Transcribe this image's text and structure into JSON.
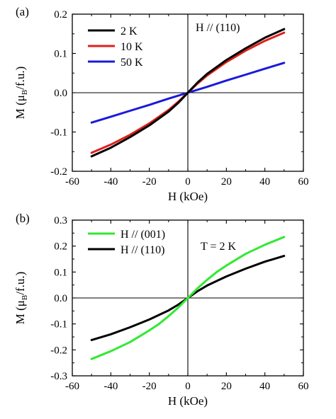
{
  "chart_data": [
    {
      "type": "line",
      "panel_label": "(a)",
      "annotation": "H // (110)",
      "xlabel": "H (kOe)",
      "ylabel": "M (μ<sub>B</sub>/f.u.)",
      "ylabel_parts": {
        "main": "M (μ",
        "sub": "B",
        "tail": "/f.u.)"
      },
      "xlim": [
        -60,
        60
      ],
      "ylim": [
        -0.2,
        0.2
      ],
      "xticks": [
        -60,
        -40,
        -20,
        0,
        20,
        40,
        60
      ],
      "yticks": [
        -0.2,
        -0.1,
        0.0,
        0.1,
        0.2
      ],
      "xtick_labels": [
        "-60",
        "-40",
        "-20",
        "0",
        "20",
        "40",
        "60"
      ],
      "ytick_labels": [
        "-0.2",
        "-0.1",
        "0.0",
        "0.1",
        "0.2"
      ],
      "legend_position": "top-left",
      "grid": false,
      "series": [
        {
          "name": "2 K",
          "color": "#000000",
          "x": [
            -50,
            -40,
            -30,
            -20,
            -10,
            -5,
            0,
            5,
            10,
            20,
            30,
            40,
            50
          ],
          "y": [
            -0.162,
            -0.14,
            -0.113,
            -0.083,
            -0.048,
            -0.026,
            0.0,
            0.026,
            0.048,
            0.083,
            0.113,
            0.14,
            0.162
          ]
        },
        {
          "name": "10 K",
          "color": "#e0201b",
          "x": [
            -50,
            -40,
            -30,
            -20,
            -10,
            -5,
            0,
            5,
            10,
            20,
            30,
            40,
            50
          ],
          "y": [
            -0.153,
            -0.132,
            -0.107,
            -0.078,
            -0.044,
            -0.023,
            0.0,
            0.023,
            0.044,
            0.078,
            0.107,
            0.132,
            0.153
          ]
        },
        {
          "name": "50 K",
          "color": "#1a1adb",
          "x": [
            -50,
            -40,
            -30,
            -20,
            -10,
            0,
            10,
            20,
            30,
            40,
            50
          ],
          "y": [
            -0.076,
            -0.061,
            -0.046,
            -0.031,
            -0.015,
            0.0,
            0.015,
            0.031,
            0.046,
            0.061,
            0.076
          ]
        }
      ]
    },
    {
      "type": "line",
      "panel_label": "(b)",
      "annotation": "T = 2 K",
      "xlabel": "H (kOe)",
      "ylabel_parts": {
        "main": "M (μ",
        "sub": "B",
        "tail": "/f.u.)"
      },
      "xlim": [
        -60,
        60
      ],
      "ylim": [
        -0.3,
        0.3
      ],
      "xticks": [
        -60,
        -40,
        -20,
        0,
        20,
        40,
        60
      ],
      "yticks": [
        -0.3,
        -0.2,
        -0.1,
        0.0,
        0.1,
        0.2,
        0.3
      ],
      "xtick_labels": [
        "-60",
        "-40",
        "-20",
        "0",
        "20",
        "40",
        "60"
      ],
      "ytick_labels": [
        "-0.3",
        "-0.2",
        "-0.1",
        "0.0",
        "0.1",
        "0.2",
        "0.3"
      ],
      "legend_position": "top-left",
      "grid": false,
      "series": [
        {
          "name": "H // (001)",
          "color": "#33e833",
          "x": [
            -50,
            -40,
            -30,
            -20,
            -15,
            -10,
            -5,
            0,
            5,
            10,
            15,
            20,
            30,
            40,
            50
          ],
          "y": [
            -0.235,
            -0.205,
            -0.17,
            -0.125,
            -0.1,
            -0.07,
            -0.037,
            0.0,
            0.037,
            0.07,
            0.1,
            0.125,
            0.17,
            0.205,
            0.235
          ]
        },
        {
          "name": "H // (110)",
          "color": "#000000",
          "x": [
            -50,
            -40,
            -30,
            -20,
            -10,
            -5,
            0,
            5,
            10,
            20,
            30,
            40,
            50
          ],
          "y": [
            -0.162,
            -0.14,
            -0.113,
            -0.083,
            -0.048,
            -0.026,
            0.0,
            0.026,
            0.048,
            0.083,
            0.113,
            0.14,
            0.162
          ]
        }
      ]
    }
  ]
}
